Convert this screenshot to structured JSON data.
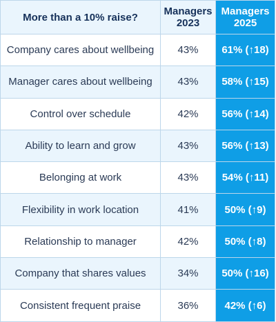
{
  "chart_data": {
    "type": "table",
    "title": "More than a 10% raise?",
    "columns": [
      {
        "line1": "Managers",
        "line2": "2023"
      },
      {
        "line1": "Managers",
        "line2": "2025"
      }
    ],
    "rows": [
      {
        "label": "Company cares about wellbeing",
        "v2023": "43%",
        "v2025": "61% (↑18)"
      },
      {
        "label": "Manager cares about wellbeing",
        "v2023": "43%",
        "v2025": "58% (↑15)"
      },
      {
        "label": "Control over schedule",
        "v2023": "42%",
        "v2025": "56% (↑14)"
      },
      {
        "label": "Ability to learn and grow",
        "v2023": "43%",
        "v2025": "56% (↑13)"
      },
      {
        "label": "Belonging at work",
        "v2023": "43%",
        "v2025": "54% (↑11)"
      },
      {
        "label": "Flexibility in work location",
        "v2023": "41%",
        "v2025": "50% (↑9)"
      },
      {
        "label": "Relationship to manager",
        "v2023": "42%",
        "v2025": "50% (↑8)"
      },
      {
        "label": "Company that shares values",
        "v2023": "34%",
        "v2025": "50% (↑16)"
      },
      {
        "label": "Consistent frequent praise",
        "v2023": "36%",
        "v2025": "42% (↑6)"
      }
    ],
    "colors": {
      "highlight": "#0f9ee6",
      "light_row": "#eaf5fd",
      "header_text": "#16315a",
      "body_text": "#2a3a55"
    }
  }
}
